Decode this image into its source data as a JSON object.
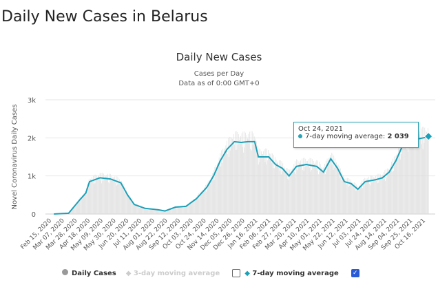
{
  "page_title": "Daily New Cases in Belarus",
  "chart_data": {
    "type": "line",
    "title": "Daily New Cases",
    "subtitle_1": "Cases per Day",
    "subtitle_2": "Data as of 0:00 GMT+0",
    "ylabel": "Novel Coronavirus Daily Cases",
    "ylim": [
      0,
      3000
    ],
    "yticks": [
      "0",
      "1k",
      "2k",
      "3k"
    ],
    "x_unit": "days since Feb 15, 2020",
    "xticks": [
      "Feb 15, 2020",
      "Mar 07, 2020",
      "Mar 28, 2020",
      "Apr 18, 2020",
      "May 09, 2020",
      "May 30, 2020",
      "Jun 20, 2020",
      "Jul 11, 2020",
      "Aug 01, 2020",
      "Aug 22, 2020",
      "Sep 12, 2020",
      "Oct 03, 2020",
      "Oct 24, 2020",
      "Nov 14, 2020",
      "Dec 05, 2020",
      "Dec 26, 2020",
      "Jan 16, 2021",
      "Feb 06, 2021",
      "Feb 27, 2021",
      "Mar 20, 2021",
      "Apr 10, 2021",
      "May 01, 2021",
      "May 22, 2021",
      "Jun 12, 2021",
      "Jul 03, 2021",
      "Jul 24, 2021",
      "Aug 14, 2021",
      "Sep 04, 2021",
      "Sep 25, 2021",
      "Oct 16, 2021"
    ],
    "series": [
      {
        "name": "7-day moving average",
        "color": "#1aa0b8",
        "points": [
          [
            7,
            0
          ],
          [
            31,
            20
          ],
          [
            48,
            350
          ],
          [
            59,
            550
          ],
          [
            65,
            850
          ],
          [
            82,
            950
          ],
          [
            99,
            920
          ],
          [
            116,
            820
          ],
          [
            127,
            500
          ],
          [
            138,
            250
          ],
          [
            155,
            150
          ],
          [
            177,
            110
          ],
          [
            188,
            80
          ],
          [
            205,
            180
          ],
          [
            222,
            200
          ],
          [
            239,
            400
          ],
          [
            256,
            700
          ],
          [
            267,
            1000
          ],
          [
            278,
            1400
          ],
          [
            289,
            1700
          ],
          [
            301,
            1900
          ],
          [
            312,
            1880
          ],
          [
            323,
            1900
          ],
          [
            334,
            1900
          ],
          [
            340,
            1500
          ],
          [
            357,
            1500
          ],
          [
            368,
            1300
          ],
          [
            379,
            1200
          ],
          [
            390,
            1000
          ],
          [
            402,
            1250
          ],
          [
            418,
            1300
          ],
          [
            435,
            1250
          ],
          [
            446,
            1100
          ],
          [
            458,
            1450
          ],
          [
            469,
            1200
          ],
          [
            480,
            850
          ],
          [
            491,
            800
          ],
          [
            502,
            650
          ],
          [
            514,
            850
          ],
          [
            531,
            900
          ],
          [
            542,
            950
          ],
          [
            553,
            1100
          ],
          [
            564,
            1400
          ],
          [
            575,
            1800
          ],
          [
            592,
            1950
          ],
          [
            609,
            2000
          ],
          [
            617,
            2039
          ]
        ]
      }
    ],
    "tooltip": {
      "date": "Oct 24, 2021",
      "label": "7-day moving average: ",
      "value": "2 039"
    },
    "legend": {
      "daily": "Daily Cases",
      "three_day": "3-day moving average",
      "seven_day": "7-day moving average"
    }
  }
}
